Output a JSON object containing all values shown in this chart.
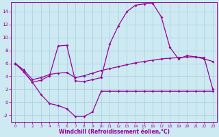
{
  "bg_color": "#cde9f2",
  "grid_color": "#aacfde",
  "line_color": "#990099",
  "xlabel": "Windchill (Refroidissement éolien,°C)",
  "ylim": [
    -3,
    15.5
  ],
  "xlim": [
    -0.5,
    23.5
  ],
  "yticks": [
    -2,
    0,
    2,
    4,
    6,
    8,
    10,
    12,
    14
  ],
  "xticks": [
    0,
    1,
    2,
    3,
    4,
    5,
    6,
    7,
    8,
    9,
    10,
    11,
    12,
    13,
    14,
    15,
    16,
    17,
    18,
    19,
    20,
    21,
    22,
    23
  ],
  "wc_x": [
    0,
    1,
    2,
    3,
    4,
    5,
    6,
    7,
    8,
    9,
    10,
    11,
    12,
    13,
    14,
    15,
    16,
    17,
    18,
    19,
    20,
    21,
    22,
    23
  ],
  "wc_y": [
    6.0,
    4.7,
    3.1,
    1.2,
    -0.2,
    -0.5,
    -1.0,
    -2.2,
    -2.2,
    -1.5,
    1.7,
    1.7,
    1.7,
    1.7,
    1.7,
    1.7,
    1.7,
    1.7,
    1.7,
    1.7,
    1.7,
    1.7,
    1.7,
    1.7
  ],
  "tp_x": [
    0,
    1,
    2,
    3,
    4,
    5,
    6,
    7,
    8,
    9,
    10,
    11,
    12,
    13,
    14,
    15,
    16,
    17,
    18,
    19,
    20,
    21,
    22,
    23
  ],
  "tp_y": [
    6.0,
    4.7,
    3.1,
    3.4,
    4.1,
    8.7,
    8.8,
    3.3,
    3.2,
    3.5,
    3.8,
    9.0,
    11.8,
    14.0,
    15.0,
    15.2,
    15.3,
    13.2,
    8.5,
    6.7,
    7.2,
    7.0,
    6.7,
    6.3
  ],
  "at_x": [
    0,
    1,
    2,
    3,
    4,
    5,
    6,
    7,
    8,
    9,
    10,
    11,
    12,
    13,
    14,
    15,
    16,
    17,
    18,
    19,
    20,
    21,
    22,
    23
  ],
  "at_y": [
    6.0,
    5.0,
    3.5,
    3.8,
    4.3,
    4.5,
    4.6,
    3.8,
    4.1,
    4.5,
    4.9,
    5.2,
    5.5,
    5.8,
    6.1,
    6.3,
    6.5,
    6.7,
    6.8,
    6.9,
    7.0,
    7.0,
    6.9,
    2.0
  ]
}
